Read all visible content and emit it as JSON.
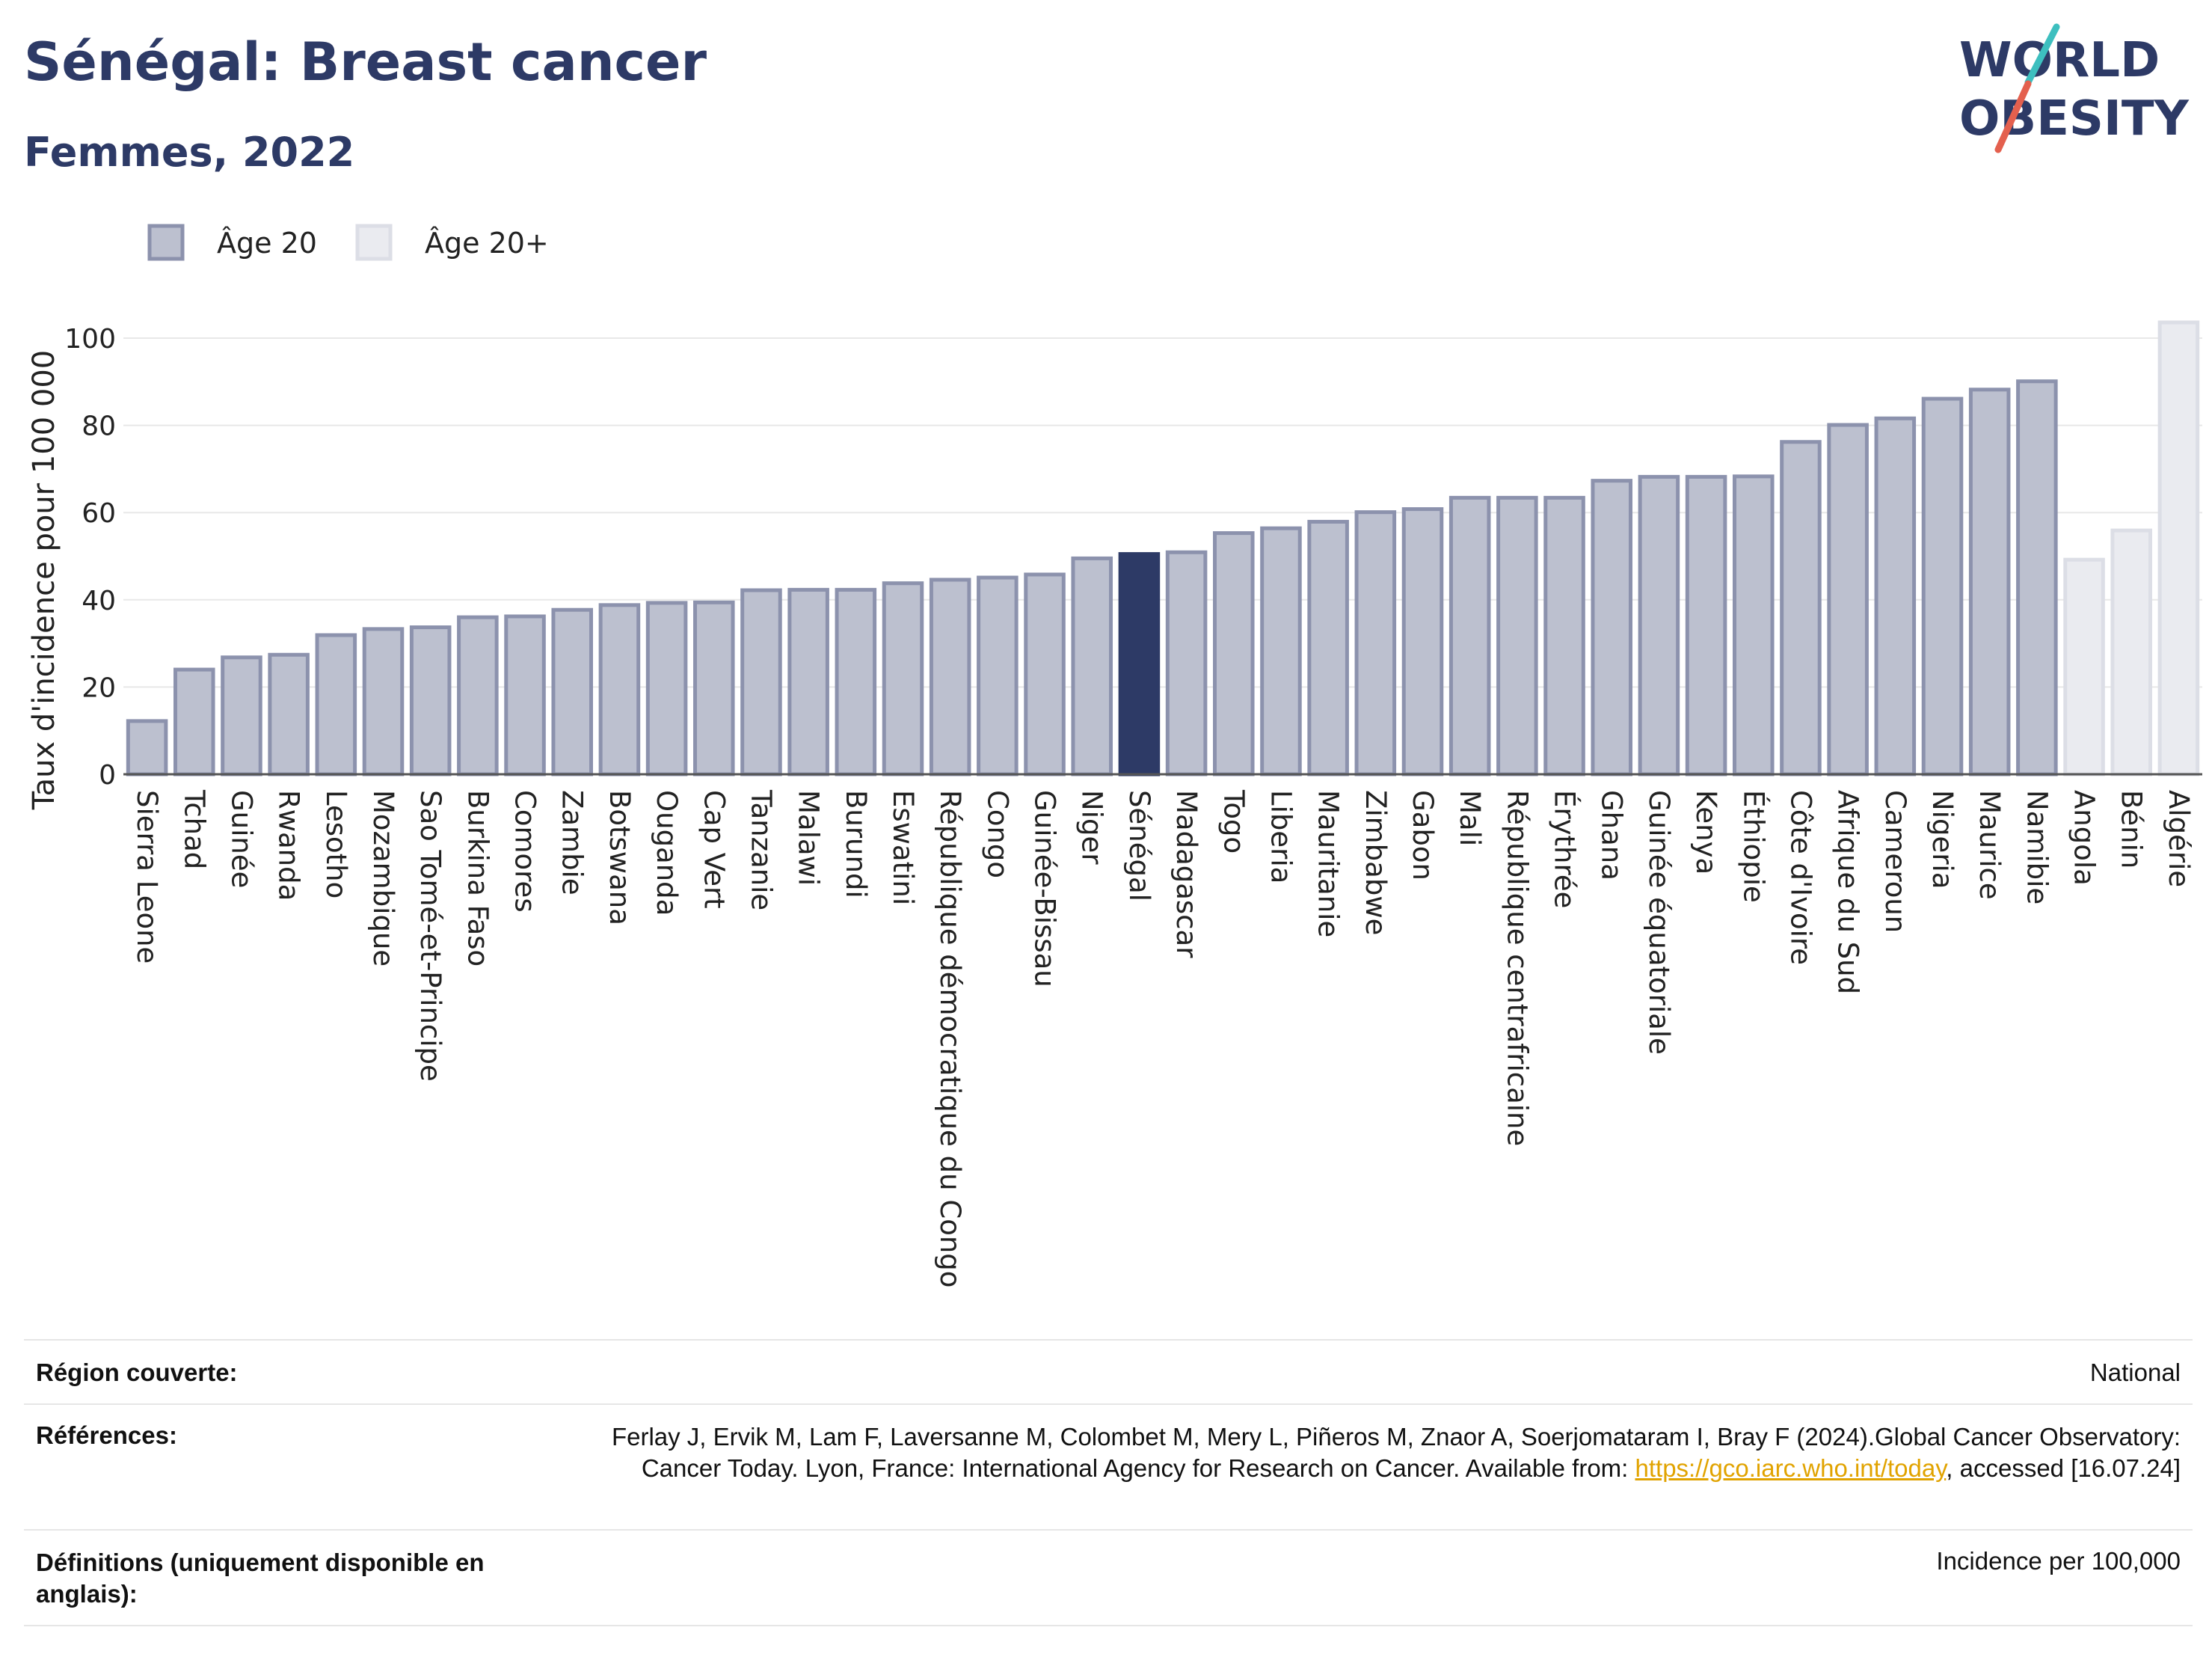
{
  "title": "Sénégal: Breast cancer",
  "subtitle": "Femmes, 2022",
  "logo": {
    "line1": "WORLD",
    "line2": "OBESITY",
    "accent_colors": [
      "#3dbfbf",
      "#e4604e"
    ]
  },
  "legend": [
    {
      "name": "Âge 20",
      "color": "#bcc0cf",
      "stroke": "#8c92ad"
    },
    {
      "name": "Âge 20+",
      "color": "#eaebf0",
      "stroke": "#dcdee6"
    }
  ],
  "colors": {
    "highlight": "#2d3a66",
    "grid": "#e8e8e8",
    "axis": "#555555"
  },
  "chart_data": {
    "type": "bar",
    "ylabel": "Taux d'incidence pour 100 000",
    "ylim": [
      0,
      108
    ],
    "yticks": [
      0,
      20,
      40,
      60,
      80,
      100
    ],
    "grid": true,
    "legend_position": "top-left",
    "highlight": "Sénégal",
    "categories": [
      "Sierra Leone",
      "Tchad",
      "Guinée",
      "Rwanda",
      "Lesotho",
      "Mozambique",
      "Sao Tomé-et-Principe",
      "Burkina Faso",
      "Comores",
      "Zambie",
      "Botswana",
      "Ouganda",
      "Cap Vert",
      "Tanzanie",
      "Malawi",
      "Burundi",
      "Eswatini",
      "République démocratique du Congo",
      "Congo",
      "Guinée-Bissau",
      "Niger",
      "Sénégal",
      "Madagascar",
      "Togo",
      "Liberia",
      "Mauritanie",
      "Zimbabwe",
      "Gabon",
      "Mali",
      "République centrafricaine",
      "Érythrée",
      "Ghana",
      "Guinée équatoriale",
      "Kenya",
      "Éthiopie",
      "Côte d'Ivoire",
      "Afrique du Sud",
      "Cameroun",
      "Nigeria",
      "Maurice",
      "Namibie",
      "Angola",
      "Bénin",
      "Algérie"
    ],
    "values": [
      12.2,
      24.0,
      26.8,
      27.4,
      31.9,
      33.3,
      33.7,
      36.0,
      36.2,
      37.7,
      38.8,
      39.3,
      39.4,
      42.2,
      42.3,
      42.3,
      43.8,
      44.6,
      45.1,
      45.8,
      49.5,
      50.5,
      50.9,
      55.3,
      56.4,
      57.9,
      60.1,
      60.8,
      63.4,
      63.4,
      63.4,
      67.3,
      68.2,
      68.2,
      68.3,
      76.2,
      80.1,
      81.6,
      86.1,
      88.2,
      90.1,
      49.2,
      55.9,
      103.6
    ],
    "series_of": [
      "Âge 20",
      "Âge 20",
      "Âge 20",
      "Âge 20",
      "Âge 20",
      "Âge 20",
      "Âge 20",
      "Âge 20",
      "Âge 20",
      "Âge 20",
      "Âge 20",
      "Âge 20",
      "Âge 20",
      "Âge 20",
      "Âge 20",
      "Âge 20",
      "Âge 20",
      "Âge 20",
      "Âge 20",
      "Âge 20",
      "Âge 20",
      "Âge 20",
      "Âge 20",
      "Âge 20",
      "Âge 20",
      "Âge 20",
      "Âge 20",
      "Âge 20",
      "Âge 20",
      "Âge 20",
      "Âge 20",
      "Âge 20",
      "Âge 20",
      "Âge 20",
      "Âge 20",
      "Âge 20",
      "Âge 20",
      "Âge 20",
      "Âge 20",
      "Âge 20",
      "Âge 20",
      "Âge 20+",
      "Âge 20+",
      "Âge 20+"
    ]
  },
  "footer": {
    "region": {
      "label": "Région couverte:",
      "value": "National"
    },
    "references": {
      "label": "Références:",
      "text_before": "Ferlay J, Ervik M, Lam F, Laversanne M, Colombet M, Mery L, Piñeros M, Znaor A, Soerjomataram I, Bray F (2024).Global Cancer Observatory: Cancer Today. Lyon, France: International Agency for Research on Cancer. Available from: ",
      "link": "https://gco.iarc.who.int/today",
      "text_after": ", accessed [16.07.24]"
    },
    "definitions": {
      "label": "Définitions (uniquement disponible en anglais):",
      "value": "Incidence per 100,000"
    }
  }
}
